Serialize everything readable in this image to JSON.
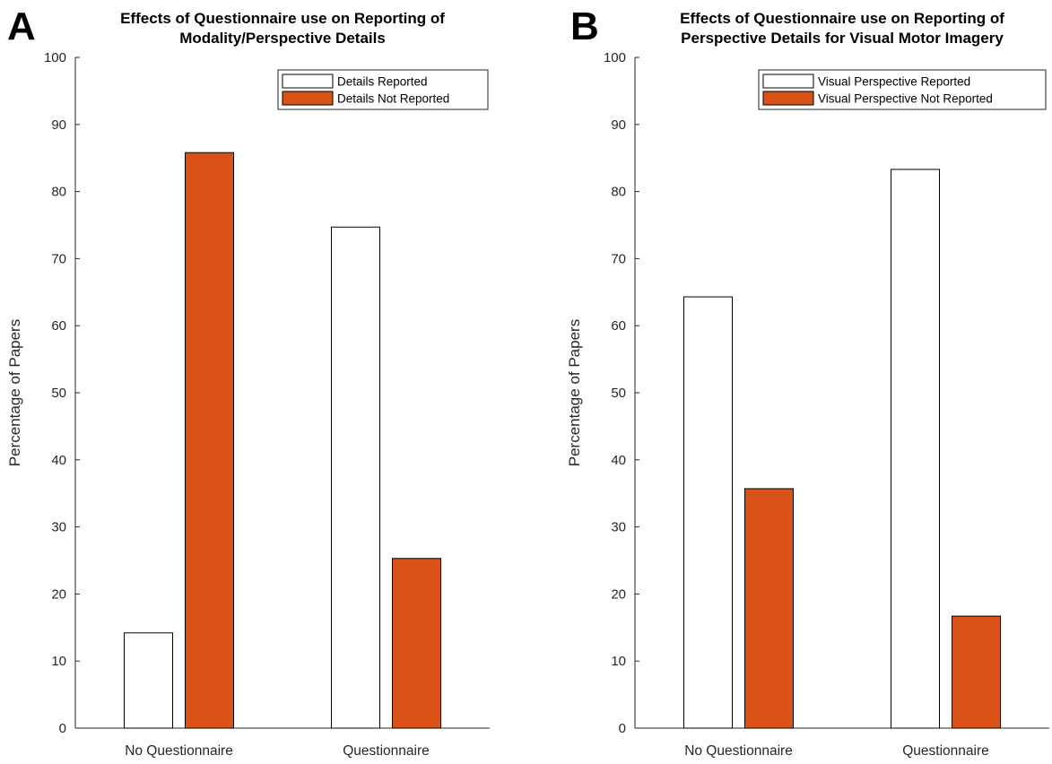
{
  "colors": {
    "reported": "#ffffff",
    "not_reported": "#d95319",
    "edge": "#000000"
  },
  "chart_data": [
    {
      "type": "bar",
      "panel_label": "A",
      "title_lines": [
        "Effects of Questionnaire use on Reporting of",
        "Modality/Perspective Details"
      ],
      "title": "Effects of Questionnaire use on Reporting of Modality/Perspective Details",
      "xlabel": "",
      "ylabel": "Percentage of Papers",
      "categories": [
        "No Questionnaire",
        "Questionnaire"
      ],
      "series": [
        {
          "name": "Details Reported",
          "values": [
            14.2,
            74.7
          ]
        },
        {
          "name": "Details Not Reported",
          "values": [
            85.8,
            25.3
          ]
        }
      ],
      "ylim": [
        0,
        100
      ],
      "yticks": [
        0,
        10,
        20,
        30,
        40,
        50,
        60,
        70,
        80,
        90,
        100
      ],
      "grid": false,
      "legend": "top-right"
    },
    {
      "type": "bar",
      "panel_label": "B",
      "title_lines": [
        "Effects of Questionnaire use on Reporting of",
        "Perspective Details for Visual Motor Imagery"
      ],
      "title": "Effects of Questionnaire use on Reporting of Perspective Details for Visual Motor Imagery",
      "xlabel": "",
      "ylabel": "Percentage of Papers",
      "categories": [
        "No Questionnaire",
        "Questionnaire"
      ],
      "series": [
        {
          "name": "Visual Perspective Reported",
          "values": [
            64.3,
            83.3
          ]
        },
        {
          "name": "Visual Perspective Not Reported",
          "values": [
            35.7,
            16.7
          ]
        }
      ],
      "ylim": [
        0,
        100
      ],
      "yticks": [
        0,
        10,
        20,
        30,
        40,
        50,
        60,
        70,
        80,
        90,
        100
      ],
      "grid": false,
      "legend": "top-right"
    }
  ]
}
